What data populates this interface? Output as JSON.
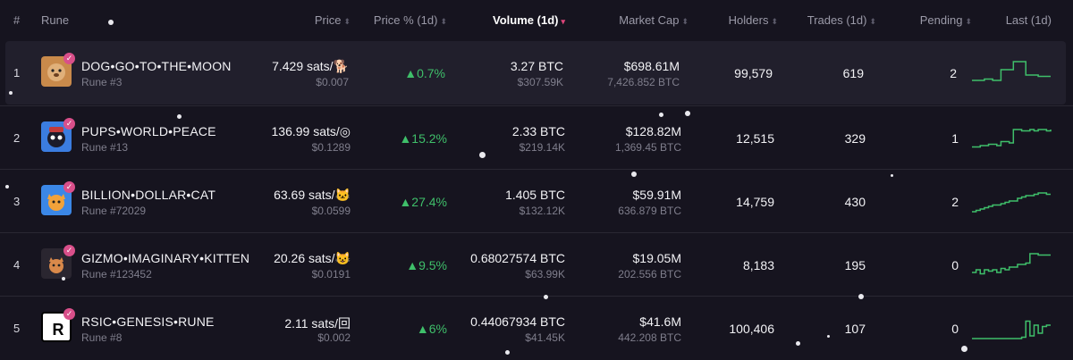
{
  "header": {
    "idx": "#",
    "rune": "Rune",
    "price": "Price",
    "price_pct": "Price % (1d)",
    "volume": "Volume (1d)",
    "market_cap": "Market Cap",
    "holders": "Holders",
    "trades": "Trades (1d)",
    "pending": "Pending",
    "last": "Last (1d)"
  },
  "rows": [
    {
      "idx": "1",
      "name": "DOG•GO•TO•THE•MOON",
      "rune_id": "Rune #3",
      "price": "7.429 sats/🐕",
      "price_usd": "$0.007",
      "change": "▲0.7%",
      "volume": "3.27 BTC",
      "volume_usd": "$307.59K",
      "mcap": "$698.61M",
      "mcap_btc": "7,426.852 BTC",
      "holders": "99,579",
      "trades": "619",
      "pending": "2",
      "logo": "dog-logo",
      "logo_color": "#c98a4b",
      "spark": [
        0.2,
        0.2,
        0.2,
        0.25,
        0.25,
        0.2,
        0.2,
        0.6,
        0.6,
        0.6,
        0.9,
        0.9,
        0.9,
        0.4,
        0.4,
        0.4,
        0.35,
        0.35,
        0.35,
        0.35
      ]
    },
    {
      "idx": "2",
      "name": "PUPS•WORLD•PEACE",
      "rune_id": "Rune #13",
      "price": "136.99 sats/◎",
      "price_usd": "$0.1289",
      "change": "▲15.2%",
      "volume": "2.33 BTC",
      "volume_usd": "$219.14K",
      "mcap": "$128.82M",
      "mcap_btc": "1,369.45 BTC",
      "holders": "12,515",
      "trades": "329",
      "pending": "1",
      "logo": "pups-logo",
      "logo_color": "#3b7de0",
      "spark": [
        0.15,
        0.15,
        0.2,
        0.2,
        0.25,
        0.25,
        0.2,
        0.35,
        0.35,
        0.3,
        0.8,
        0.8,
        0.75,
        0.75,
        0.8,
        0.75,
        0.8,
        0.8,
        0.75,
        0.8
      ]
    },
    {
      "idx": "3",
      "name": "BILLION•DOLLAR•CAT",
      "rune_id": "Rune #72029",
      "price": "63.69 sats/🐱",
      "price_usd": "$0.0599",
      "change": "▲27.4%",
      "volume": "1.405 BTC",
      "volume_usd": "$132.12K",
      "mcap": "$59.91M",
      "mcap_btc": "636.879 BTC",
      "holders": "14,759",
      "trades": "430",
      "pending": "2",
      "logo": "cat-logo",
      "logo_color": "#3b87e6",
      "spark": [
        0.1,
        0.15,
        0.2,
        0.25,
        0.3,
        0.35,
        0.35,
        0.4,
        0.45,
        0.5,
        0.5,
        0.6,
        0.65,
        0.7,
        0.7,
        0.75,
        0.8,
        0.8,
        0.75,
        0.75
      ]
    },
    {
      "idx": "4",
      "name": "GIZMO•IMAGINARY•KITTEN",
      "rune_id": "Rune #123452",
      "price": "20.26 sats/😺",
      "price_usd": "$0.0191",
      "change": "▲9.5%",
      "volume": "0.68027574 BTC",
      "volume_usd": "$63.99K",
      "mcap": "$19.05M",
      "mcap_btc": "202.556 BTC",
      "holders": "8,183",
      "trades": "195",
      "pending": "0",
      "logo": "kitten-logo",
      "logo_color": "#2a2630",
      "spark": [
        0.2,
        0.3,
        0.15,
        0.3,
        0.25,
        0.3,
        0.2,
        0.35,
        0.3,
        0.4,
        0.4,
        0.5,
        0.5,
        0.55,
        0.9,
        0.9,
        0.85,
        0.85,
        0.85,
        0.85
      ]
    },
    {
      "idx": "5",
      "name": "RSIC•GENESIS•RUNE",
      "rune_id": "Rune #8",
      "price": "2.11 sats/回",
      "price_usd": "$0.002",
      "change": "▲6%",
      "volume": "0.44067934 BTC",
      "volume_usd": "$41.45K",
      "mcap": "$41.6M",
      "mcap_btc": "442.208 BTC",
      "holders": "100,406",
      "trades": "107",
      "pending": "0",
      "logo": "rsic-logo",
      "logo_color": "#ffffff",
      "spark": [
        0.1,
        0.1,
        0.1,
        0.1,
        0.1,
        0.1,
        0.1,
        0.1,
        0.1,
        0.1,
        0.1,
        0.1,
        0.15,
        0.75,
        0.2,
        0.6,
        0.3,
        0.55,
        0.6,
        0.6
      ]
    }
  ],
  "colors": {
    "accent": "#e0457b",
    "positive": "#3fbf6a",
    "badge": "#d94f8a",
    "background": "#16141f",
    "highlight_row": "#211f2c"
  }
}
